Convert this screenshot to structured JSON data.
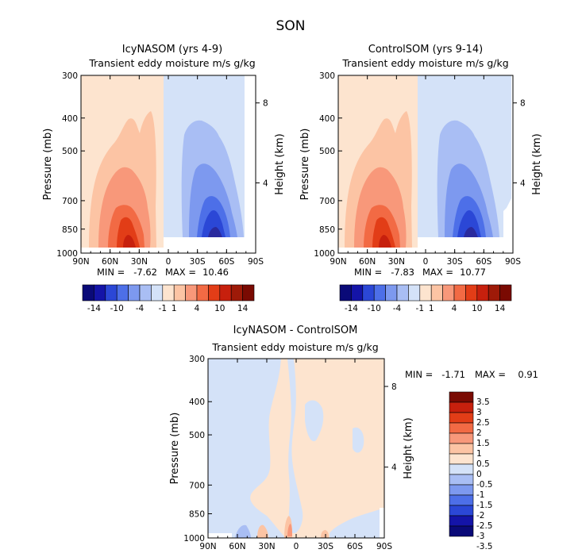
{
  "figure": {
    "title": "SON"
  },
  "colors": {
    "neg": [
      "#2a2a9e",
      "#2b47d6",
      "#4d6fe8",
      "#7d99ef",
      "#a9bef4",
      "#d4e2f8"
    ],
    "pos": [
      "#fde4cf",
      "#fcc4a4",
      "#f8987a",
      "#f26a44",
      "#e23d17",
      "#c7200d"
    ],
    "top_cb": [
      "#0a0a78",
      "#1414a8",
      "#2b47d6",
      "#4d6fe8",
      "#7d99ef",
      "#a9bef4",
      "#d4e2f8",
      "#fde4cf",
      "#fcc4a4",
      "#f8987a",
      "#f26a44",
      "#e23d17",
      "#c7200d",
      "#9e1a08",
      "#7a0a02"
    ],
    "diff_cb": [
      "#0a0a78",
      "#1414a8",
      "#2b47d6",
      "#4d6fe8",
      "#7d99ef",
      "#a9bef4",
      "#d4e2f8",
      "#fde4cf",
      "#fcc4a4",
      "#f8987a",
      "#f26a44",
      "#e23d17",
      "#c7200d",
      "#7a0a02"
    ]
  },
  "chart_data": [
    {
      "type": "heatmap",
      "title": "IcyNASOM (yrs 4-9)",
      "subtitle": "Transient eddy moisture m/s g/kg",
      "ylabel": "Pressure (mb)",
      "y2label": "Height (km)",
      "x_ticks": [
        "90N",
        "60N",
        "30N",
        "0",
        "30S",
        "60S",
        "90S"
      ],
      "y_ticks": [
        "300",
        "400",
        "500",
        "700",
        "850",
        "1000"
      ],
      "y2_ticks": [
        "8",
        "4"
      ],
      "min": "-7.62",
      "max": "10.46",
      "min_label": "MIN =",
      "max_label": "MAX ="
    },
    {
      "type": "heatmap",
      "title": "ControlSOM (yrs 9-14)",
      "subtitle": "Transient eddy moisture m/s g/kg",
      "ylabel": "Pressure (mb)",
      "y2label": "Height (km)",
      "x_ticks": [
        "90N",
        "60N",
        "30N",
        "0",
        "30S",
        "60S",
        "90S"
      ],
      "y_ticks": [
        "300",
        "400",
        "500",
        "700",
        "850",
        "1000"
      ],
      "y2_ticks": [
        "8",
        "4"
      ],
      "min": "-7.83",
      "max": "10.77",
      "min_label": "MIN =",
      "max_label": "MAX ="
    },
    {
      "type": "heatmap",
      "title": "IcyNASOM - ControlSOM",
      "subtitle": "Transient eddy moisture m/s g/kg",
      "ylabel": "Pressure (mb)",
      "y2label": "Height (km)",
      "x_ticks": [
        "90N",
        "60N",
        "30N",
        "0",
        "30S",
        "60S",
        "90S"
      ],
      "y_ticks": [
        "300",
        "400",
        "500",
        "700",
        "850",
        "1000"
      ],
      "y2_ticks": [
        "8",
        "4"
      ],
      "min": "-1.71",
      "max": "0.91",
      "min_label": "MIN =",
      "max_label": "MAX ="
    }
  ],
  "colorbars": {
    "top_labels": [
      "-14",
      "-10",
      "-4",
      "-1",
      "1",
      "4",
      "10",
      "14"
    ],
    "diff_labels": [
      "3.5",
      "3",
      "2.5",
      "2",
      "1.5",
      "1",
      "0.5",
      "0",
      "-0.5",
      "-1",
      "-1.5",
      "-2",
      "-2.5",
      "-3",
      "-3.5"
    ]
  }
}
